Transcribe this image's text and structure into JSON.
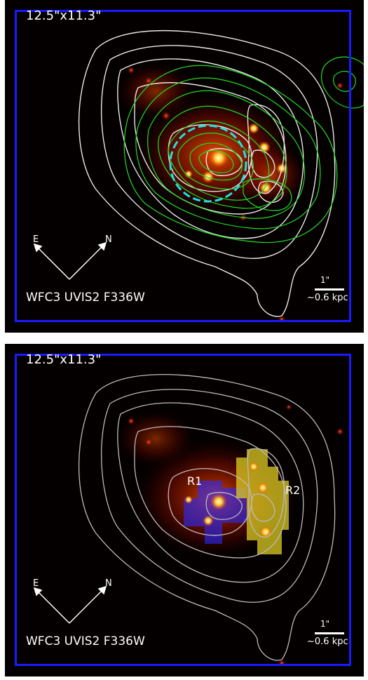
{
  "panels": [
    {
      "field_of_view": "12.5\"x11.3\"",
      "instrument_filter": "WFC3 UVIS2 F336W",
      "scale_bar_label": "1\"",
      "scale_bar_physical": "~0.6 kpc",
      "compass": {
        "east": "E",
        "north": "N"
      },
      "overlays": [
        "white-contours",
        "green-contours",
        "cyan-dashed-circle"
      ]
    },
    {
      "field_of_view": "12.5\"x11.3\"",
      "instrument_filter": "WFC3 UVIS2 F336W",
      "scale_bar_label": "1\"",
      "scale_bar_physical": "~0.6 kpc",
      "compass": {
        "east": "E",
        "north": "N"
      },
      "overlays": [
        "white-contours",
        "blue-region",
        "yellow-region"
      ],
      "regions": [
        {
          "label": "R1",
          "color": "#2a2aff"
        },
        {
          "label": "R2",
          "color": "#ddcc22"
        }
      ]
    }
  ],
  "colors": {
    "frame": "#1a1aff",
    "contour_white": "#e8e8e8",
    "contour_green": "#22dd22",
    "circle_cyan": "#22e0e0",
    "background": "#050000"
  }
}
